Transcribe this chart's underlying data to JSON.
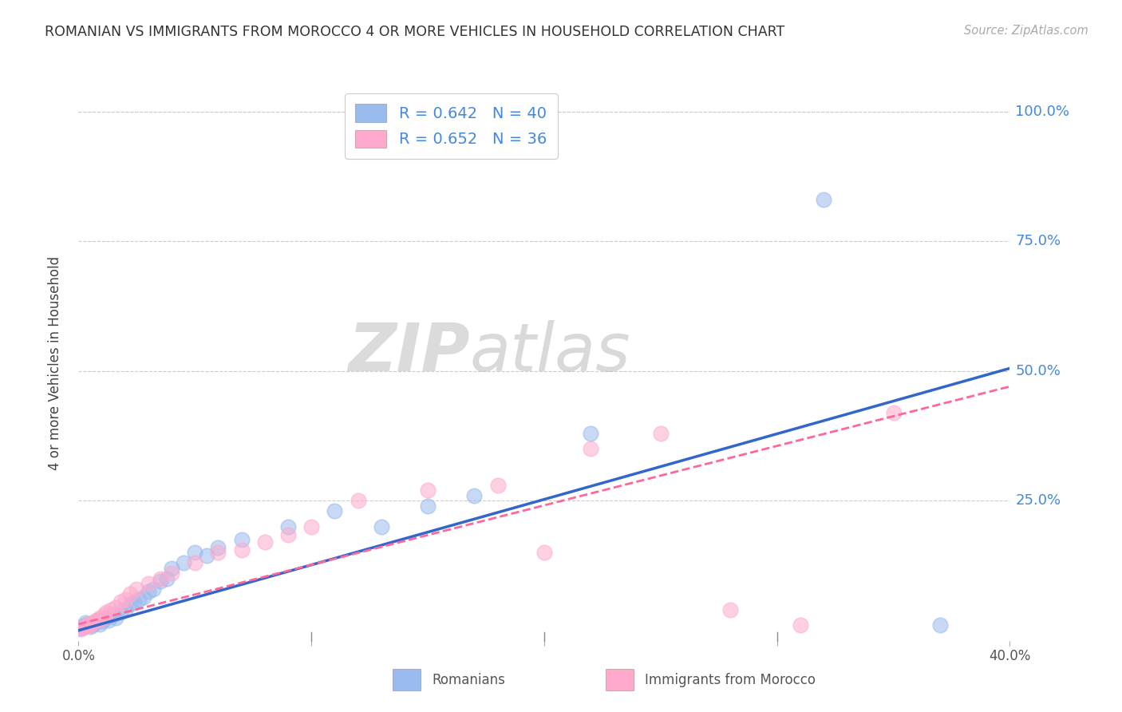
{
  "title": "ROMANIAN VS IMMIGRANTS FROM MOROCCO 4 OR MORE VEHICLES IN HOUSEHOLD CORRELATION CHART",
  "source": "Source: ZipAtlas.com",
  "ylabel": "4 or more Vehicles in Household",
  "ytick_labels": [
    "100.0%",
    "75.0%",
    "50.0%",
    "25.0%"
  ],
  "ytick_positions": [
    1.0,
    0.75,
    0.5,
    0.25
  ],
  "xlim": [
    0.0,
    0.4
  ],
  "ylim": [
    -0.02,
    1.05
  ],
  "legend_label1": "Romanians",
  "legend_label2": "Immigrants from Morocco",
  "color_blue": "#99BBEE",
  "color_blue_edge": "#99BBEE",
  "color_pink": "#FFAACC",
  "color_pink_edge": "#FFAACC",
  "color_trendblue": "#3366CC",
  "color_trendpink": "#FF6699",
  "trendline_blue": [
    0.0,
    0.0,
    0.4,
    0.505
  ],
  "trendline_pink": [
    0.0,
    0.012,
    0.4,
    0.47
  ],
  "watermark_zip": "ZIP",
  "watermark_atlas": "atlas",
  "blue_scatter_x": [
    0.001,
    0.002,
    0.003,
    0.003,
    0.004,
    0.005,
    0.006,
    0.007,
    0.008,
    0.009,
    0.01,
    0.011,
    0.012,
    0.013,
    0.015,
    0.016,
    0.018,
    0.02,
    0.022,
    0.024,
    0.026,
    0.028,
    0.03,
    0.032,
    0.035,
    0.038,
    0.04,
    0.045,
    0.05,
    0.055,
    0.06,
    0.07,
    0.09,
    0.11,
    0.13,
    0.15,
    0.17,
    0.22,
    0.32,
    0.37
  ],
  "blue_scatter_y": [
    0.005,
    0.008,
    0.01,
    0.015,
    0.012,
    0.008,
    0.01,
    0.015,
    0.02,
    0.012,
    0.018,
    0.022,
    0.025,
    0.02,
    0.03,
    0.025,
    0.035,
    0.04,
    0.05,
    0.055,
    0.06,
    0.065,
    0.075,
    0.08,
    0.095,
    0.1,
    0.12,
    0.13,
    0.15,
    0.145,
    0.16,
    0.175,
    0.2,
    0.23,
    0.2,
    0.24,
    0.26,
    0.38,
    0.83,
    0.01
  ],
  "pink_scatter_x": [
    0.001,
    0.002,
    0.003,
    0.004,
    0.005,
    0.006,
    0.007,
    0.008,
    0.009,
    0.01,
    0.011,
    0.012,
    0.014,
    0.016,
    0.018,
    0.02,
    0.022,
    0.025,
    0.03,
    0.035,
    0.04,
    0.05,
    0.06,
    0.07,
    0.08,
    0.09,
    0.1,
    0.12,
    0.15,
    0.18,
    0.2,
    0.22,
    0.25,
    0.28,
    0.31,
    0.35
  ],
  "pink_scatter_y": [
    0.003,
    0.006,
    0.008,
    0.012,
    0.01,
    0.015,
    0.018,
    0.02,
    0.025,
    0.022,
    0.03,
    0.035,
    0.04,
    0.045,
    0.055,
    0.06,
    0.07,
    0.08,
    0.09,
    0.1,
    0.11,
    0.13,
    0.15,
    0.155,
    0.17,
    0.185,
    0.2,
    0.25,
    0.27,
    0.28,
    0.15,
    0.35,
    0.38,
    0.04,
    0.01,
    0.42
  ]
}
